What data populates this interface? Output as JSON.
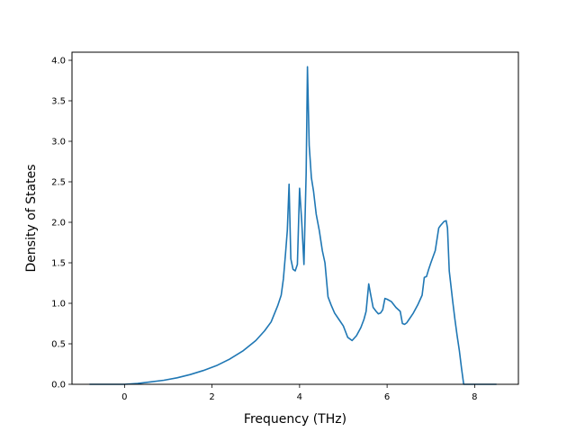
{
  "chart_data": {
    "type": "line",
    "title": "",
    "xlabel": "Frequency (THz)",
    "ylabel": "Density of States",
    "xlim": [
      -1.2,
      9.0
    ],
    "ylim": [
      0.0,
      4.1
    ],
    "xticks": [
      0,
      2,
      4,
      6,
      8
    ],
    "xtick_labels": [
      "0",
      "2",
      "4",
      "6",
      "8"
    ],
    "yticks": [
      0.0,
      0.5,
      1.0,
      1.5,
      2.0,
      2.5,
      3.0,
      3.5,
      4.0
    ],
    "ytick_labels": [
      "0.0",
      "0.5",
      "1.0",
      "1.5",
      "2.0",
      "2.5",
      "3.0",
      "3.5",
      "4.0"
    ],
    "grid": false,
    "series": [
      {
        "color": "#1f77b4",
        "x": [
          -0.8,
          -0.4,
          0.0,
          0.3,
          0.6,
          0.9,
          1.2,
          1.5,
          1.8,
          2.1,
          2.4,
          2.7,
          3.0,
          3.2,
          3.35,
          3.5,
          3.58,
          3.63,
          3.68,
          3.72,
          3.76,
          3.8,
          3.85,
          3.9,
          3.95,
          4.0,
          4.05,
          4.1,
          4.15,
          4.18,
          4.22,
          4.27,
          4.32,
          4.38,
          4.45,
          4.52,
          4.58,
          4.65,
          4.72,
          4.8,
          4.9,
          5.0,
          5.05,
          5.1,
          5.2,
          5.3,
          5.4,
          5.47,
          5.52,
          5.58,
          5.62,
          5.68,
          5.75,
          5.8,
          5.85,
          5.9,
          5.95,
          6.0,
          6.1,
          6.2,
          6.3,
          6.35,
          6.4,
          6.45,
          6.5,
          6.55,
          6.6,
          6.7,
          6.8,
          6.85,
          6.9,
          6.95,
          7.0,
          7.1,
          7.18,
          7.22,
          7.3,
          7.35,
          7.38,
          7.42,
          7.5,
          7.55,
          7.6,
          7.65,
          7.7,
          7.75,
          8.0,
          8.5
        ],
        "y": [
          0.0,
          0.0,
          0.0,
          0.01,
          0.03,
          0.05,
          0.08,
          0.12,
          0.17,
          0.23,
          0.31,
          0.41,
          0.54,
          0.66,
          0.77,
          0.97,
          1.1,
          1.3,
          1.62,
          1.9,
          2.47,
          1.55,
          1.42,
          1.4,
          1.48,
          2.42,
          2.0,
          1.48,
          2.6,
          3.92,
          2.95,
          2.55,
          2.38,
          2.1,
          1.9,
          1.65,
          1.5,
          1.08,
          0.98,
          0.88,
          0.8,
          0.72,
          0.65,
          0.58,
          0.54,
          0.6,
          0.7,
          0.8,
          0.9,
          1.24,
          1.12,
          0.95,
          0.9,
          0.87,
          0.88,
          0.92,
          1.06,
          1.05,
          1.02,
          0.95,
          0.9,
          0.75,
          0.74,
          0.76,
          0.8,
          0.84,
          0.88,
          0.98,
          1.1,
          1.32,
          1.33,
          1.42,
          1.5,
          1.65,
          1.93,
          1.96,
          2.01,
          2.02,
          1.93,
          1.4,
          1.02,
          0.8,
          0.6,
          0.42,
          0.2,
          0.0,
          0.0,
          0.0
        ]
      }
    ]
  }
}
